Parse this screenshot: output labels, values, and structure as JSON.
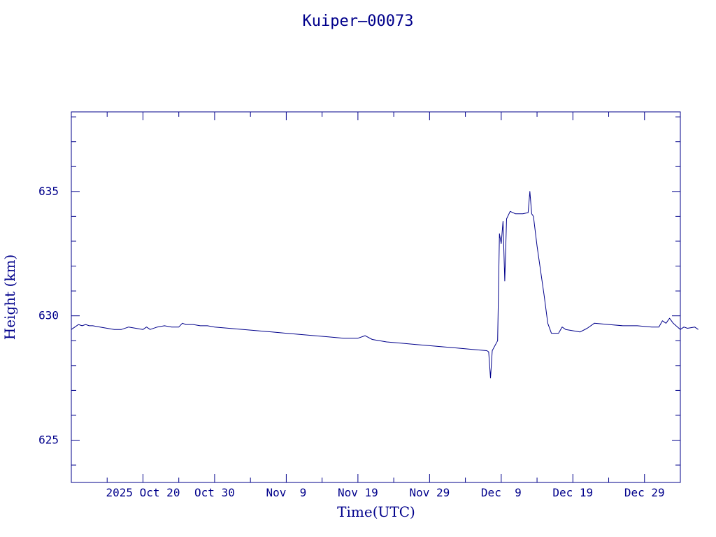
{
  "colors": {
    "ink": "#00008b",
    "background": "#ffffff"
  },
  "chart_data": {
    "type": "line",
    "title": "Kuiper‒00073",
    "xlabel": "Time(UTC)",
    "ylabel": "Height (km)",
    "xlim": [
      "2025-10-10",
      "2026-01-03"
    ],
    "ylim": [
      623.3,
      638.2
    ],
    "x_ticks": [
      {
        "date": "2025-10-20",
        "label": "2025 Oct 20"
      },
      {
        "date": "2025-10-30",
        "label": "Oct 30"
      },
      {
        "date": "2025-11-09",
        "label": "Nov  9"
      },
      {
        "date": "2025-11-19",
        "label": "Nov 19"
      },
      {
        "date": "2025-11-29",
        "label": "Nov 29"
      },
      {
        "date": "2025-12-09",
        "label": "Dec  9"
      },
      {
        "date": "2025-12-19",
        "label": "Dec 19"
      },
      {
        "date": "2025-12-29",
        "label": "Dec 29"
      }
    ],
    "y_ticks": [
      625,
      630,
      635
    ],
    "grid": false,
    "series": [
      {
        "color": "#00008b",
        "points": [
          [
            "2025-10-10T00:00",
            629.45
          ],
          [
            "2025-10-10T12:00",
            629.55
          ],
          [
            "2025-10-11T00:00",
            629.65
          ],
          [
            "2025-10-11T12:00",
            629.6
          ],
          [
            "2025-10-12T00:00",
            629.65
          ],
          [
            "2025-10-12T12:00",
            629.6
          ],
          [
            "2025-10-13T00:00",
            629.6
          ],
          [
            "2025-10-14T00:00",
            629.55
          ],
          [
            "2025-10-15T00:00",
            629.5
          ],
          [
            "2025-10-16T00:00",
            629.45
          ],
          [
            "2025-10-17T00:00",
            629.45
          ],
          [
            "2025-10-18T00:00",
            629.55
          ],
          [
            "2025-10-19T00:00",
            629.5
          ],
          [
            "2025-10-20T00:00",
            629.45
          ],
          [
            "2025-10-20T12:00",
            629.55
          ],
          [
            "2025-10-21T00:00",
            629.45
          ],
          [
            "2025-10-22T00:00",
            629.55
          ],
          [
            "2025-10-23T00:00",
            629.6
          ],
          [
            "2025-10-24T00:00",
            629.55
          ],
          [
            "2025-10-25T00:00",
            629.55
          ],
          [
            "2025-10-25T12:00",
            629.7
          ],
          [
            "2025-10-26T00:00",
            629.65
          ],
          [
            "2025-10-27T00:00",
            629.65
          ],
          [
            "2025-10-28T00:00",
            629.6
          ],
          [
            "2025-10-29T00:00",
            629.6
          ],
          [
            "2025-10-30T00:00",
            629.55
          ],
          [
            "2025-11-01T00:00",
            629.5
          ],
          [
            "2025-11-03T00:00",
            629.45
          ],
          [
            "2025-11-05T00:00",
            629.4
          ],
          [
            "2025-11-07T00:00",
            629.35
          ],
          [
            "2025-11-09T00:00",
            629.3
          ],
          [
            "2025-11-11T00:00",
            629.25
          ],
          [
            "2025-11-13T00:00",
            629.2
          ],
          [
            "2025-11-15T00:00",
            629.15
          ],
          [
            "2025-11-17T00:00",
            629.1
          ],
          [
            "2025-11-19T00:00",
            629.1
          ],
          [
            "2025-11-20T00:00",
            629.2
          ],
          [
            "2025-11-21T00:00",
            629.05
          ],
          [
            "2025-11-23T00:00",
            628.95
          ],
          [
            "2025-11-25T00:00",
            628.9
          ],
          [
            "2025-11-27T00:00",
            628.85
          ],
          [
            "2025-11-29T00:00",
            628.8
          ],
          [
            "2025-12-01T00:00",
            628.75
          ],
          [
            "2025-12-03T00:00",
            628.7
          ],
          [
            "2025-12-05T00:00",
            628.65
          ],
          [
            "2025-12-07T00:00",
            628.6
          ],
          [
            "2025-12-07T06:00",
            628.55
          ],
          [
            "2025-12-07T12:00",
            627.5
          ],
          [
            "2025-12-07T18:00",
            628.6
          ],
          [
            "2025-12-08T12:00",
            629.0
          ],
          [
            "2025-12-08T18:00",
            633.3
          ],
          [
            "2025-12-09T00:00",
            632.9
          ],
          [
            "2025-12-09T06:00",
            633.8
          ],
          [
            "2025-12-09T12:00",
            631.4
          ],
          [
            "2025-12-09T18:00",
            633.9
          ],
          [
            "2025-12-10T06:00",
            634.2
          ],
          [
            "2025-12-11T00:00",
            634.1
          ],
          [
            "2025-12-12T00:00",
            634.1
          ],
          [
            "2025-12-12T18:00",
            634.15
          ],
          [
            "2025-12-13T00:00",
            635.0
          ],
          [
            "2025-12-13T06:00",
            634.1
          ],
          [
            "2025-12-13T12:00",
            634.0
          ],
          [
            "2025-12-14T00:00",
            632.8
          ],
          [
            "2025-12-15T00:00",
            630.8
          ],
          [
            "2025-12-15T12:00",
            629.7
          ],
          [
            "2025-12-16T00:00",
            629.3
          ],
          [
            "2025-12-17T00:00",
            629.3
          ],
          [
            "2025-12-17T12:00",
            629.55
          ],
          [
            "2025-12-18T00:00",
            629.45
          ],
          [
            "2025-12-19T00:00",
            629.4
          ],
          [
            "2025-12-20T00:00",
            629.35
          ],
          [
            "2025-12-21T00:00",
            629.5
          ],
          [
            "2025-12-22T00:00",
            629.7
          ],
          [
            "2025-12-24T00:00",
            629.65
          ],
          [
            "2025-12-26T00:00",
            629.6
          ],
          [
            "2025-12-28T00:00",
            629.6
          ],
          [
            "2025-12-30T00:00",
            629.55
          ],
          [
            "2025-12-31T00:00",
            629.55
          ],
          [
            "2025-12-31T12:00",
            629.8
          ],
          [
            "2026-01-01T00:00",
            629.7
          ],
          [
            "2026-01-01T12:00",
            629.9
          ],
          [
            "2026-01-02T00:00",
            629.7
          ],
          [
            "2026-01-03T00:00",
            629.45
          ],
          [
            "2026-01-03T12:00",
            629.55
          ],
          [
            "2026-01-04T00:00",
            629.5
          ],
          [
            "2026-01-05T00:00",
            629.55
          ],
          [
            "2026-01-05T12:00",
            629.45
          ]
        ]
      }
    ]
  }
}
